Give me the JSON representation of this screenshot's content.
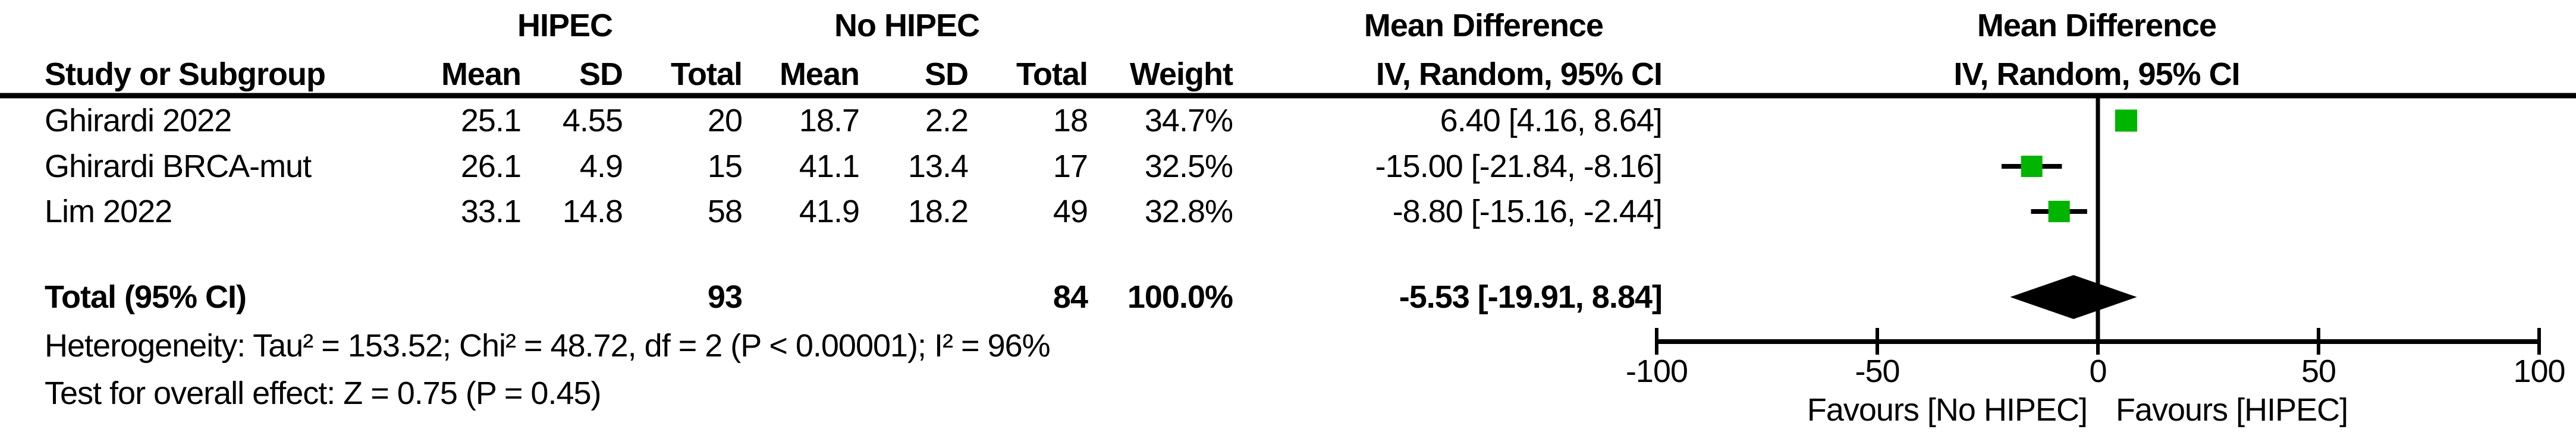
{
  "table": {
    "group_headers": {
      "hipec": "HIPEC",
      "no_hipec": "No HIPEC",
      "effect_line1": "Mean Difference",
      "effect_line2": "IV, Random, 95% CI"
    },
    "plot_headers": {
      "line1": "Mean Difference",
      "line2": "IV, Random, 95% CI"
    },
    "columns": {
      "study": "Study or Subgroup",
      "mean1": "Mean",
      "sd1": "SD",
      "total1": "Total",
      "mean2": "Mean",
      "sd2": "SD",
      "total2": "Total",
      "weight": "Weight"
    },
    "rows": [
      {
        "study": "Ghirardi 2022",
        "mean1": "25.1",
        "sd1": "4.55",
        "total1": "20",
        "mean2": "18.7",
        "sd2": "2.2",
        "total2": "18",
        "weight": "34.7%",
        "ci": "6.40 [4.16, 8.64]"
      },
      {
        "study": "Ghirardi BRCA-mut",
        "mean1": "26.1",
        "sd1": "4.9",
        "total1": "15",
        "mean2": "41.1",
        "sd2": "13.4",
        "total2": "17",
        "weight": "32.5%",
        "ci": "-15.00 [-21.84, -8.16]"
      },
      {
        "study": "Lim 2022",
        "mean1": "33.1",
        "sd1": "14.8",
        "total1": "58",
        "mean2": "41.9",
        "sd2": "18.2",
        "total2": "49",
        "weight": "32.8%",
        "ci": "-8.80 [-15.16, -2.44]"
      }
    ],
    "total_row": {
      "label": "Total (95% CI)",
      "total1": "93",
      "total2": "84",
      "weight": "100.0%",
      "ci": "-5.53 [-19.91, 8.84]"
    }
  },
  "footnotes": {
    "heterogeneity": "Heterogeneity: Tau² = 153.52; Chi² = 48.72, df = 2 (P < 0.00001); I² = 96%",
    "overall_effect": "Test for overall effect: Z = 0.75 (P = 0.45)"
  },
  "chart_data": {
    "type": "scatter",
    "subtype": "forest-plot",
    "effect_measure": "Mean Difference IV, Random, 95% CI",
    "studies": [
      {
        "name": "Ghirardi 2022",
        "md": 6.4,
        "ci_low": 4.16,
        "ci_high": 8.64,
        "weight_pct": 34.7
      },
      {
        "name": "Ghirardi BRCA-mut",
        "md": -15.0,
        "ci_low": -21.84,
        "ci_high": -8.16,
        "weight_pct": 32.5
      },
      {
        "name": "Lim 2022",
        "md": -8.8,
        "ci_low": -15.16,
        "ci_high": -2.44,
        "weight_pct": 32.8
      }
    ],
    "total": {
      "label": "Total (95% CI)",
      "md": -5.53,
      "ci_low": -19.91,
      "ci_high": 8.84,
      "weight_pct": 100.0
    },
    "axis": {
      "min": -100,
      "max": 100,
      "ticks": [
        -100,
        -50,
        0,
        50,
        100
      ],
      "tick_labels": [
        "-100",
        "-50",
        "0",
        "50",
        "100"
      ],
      "grid": false
    },
    "favours_left": "Favours [No HIPEC]",
    "favours_right": "Favours [HIPEC]",
    "marker_color": "#00b400",
    "diamond_color": "#000000",
    "line_color": "#000000"
  },
  "colors": {
    "marker_green": "#00b400",
    "text": "#000000",
    "background": "#ffffff"
  }
}
